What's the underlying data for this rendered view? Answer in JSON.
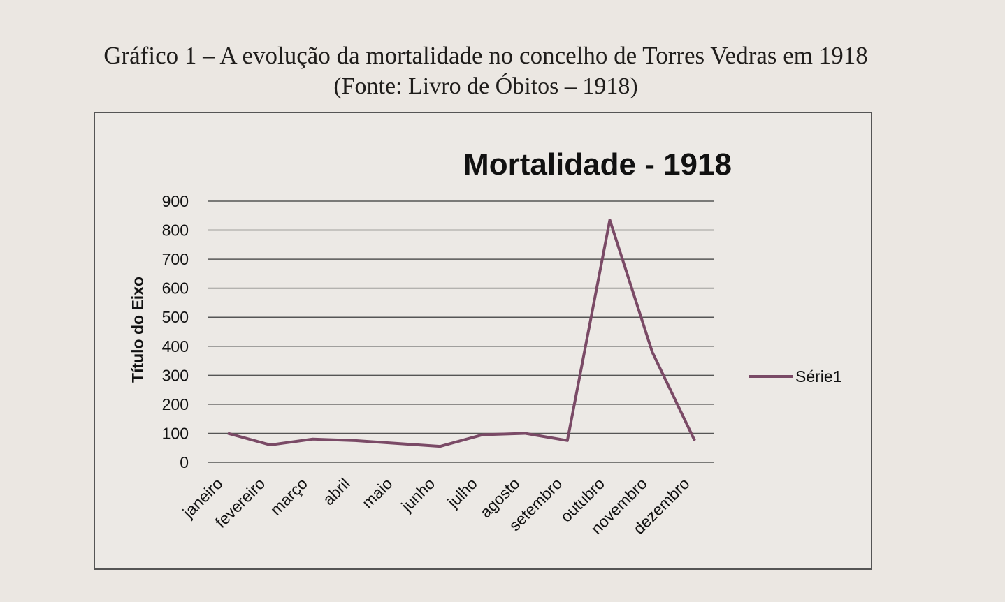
{
  "caption": {
    "title": "Gráfico 1 – A evolução da mortalidade no concelho de Torres Vedras em 1918",
    "source": "(Fonte: Livro de Óbitos – 1918)"
  },
  "colors": {
    "series": "#7a4a66",
    "grid": "#555555",
    "text": "#111111"
  },
  "chart_data": {
    "type": "line",
    "title": "Mortalidade - 1918",
    "ylabel": "Título do Eixo",
    "xlabel": "",
    "ylim": [
      0,
      900
    ],
    "yticks": [
      0,
      100,
      200,
      300,
      400,
      500,
      600,
      700,
      800,
      900
    ],
    "grid": true,
    "legend_position": "right",
    "categories": [
      "janeiro",
      "fevereiro",
      "março",
      "abril",
      "maio",
      "junho",
      "julho",
      "agosto",
      "setembro",
      "outubro",
      "novembro",
      "dezembro"
    ],
    "series": [
      {
        "name": "Série1",
        "values": [
          100,
          60,
          80,
          75,
          65,
          55,
          95,
          100,
          75,
          835,
          380,
          75
        ]
      }
    ]
  }
}
